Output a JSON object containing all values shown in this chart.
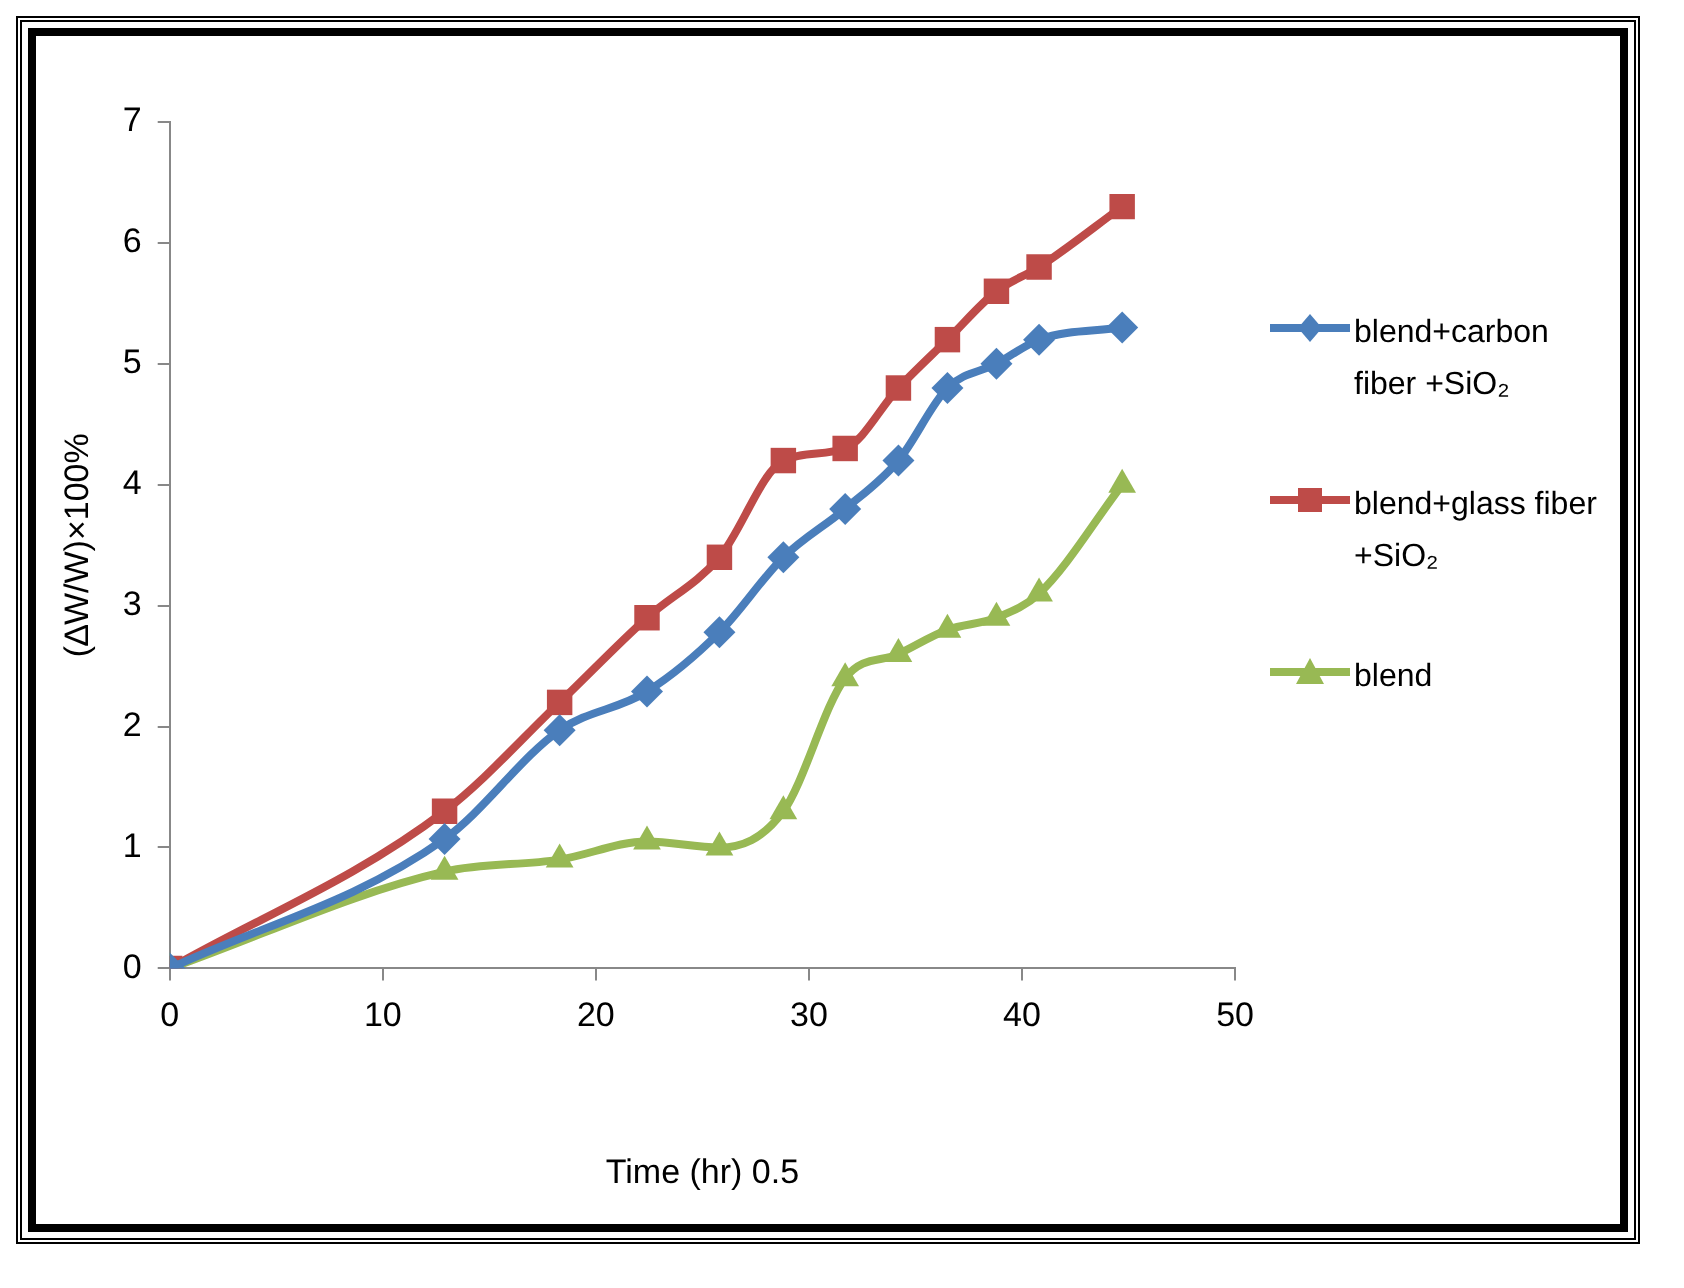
{
  "chart_data": {
    "type": "line",
    "xlabel": "Time (hr) 0.5",
    "ylabel": "(∆W/W)×100%",
    "x": [
      0,
      12.9,
      18.3,
      22.4,
      25.8,
      28.8,
      31.7,
      34.2,
      36.5,
      38.8,
      40.8,
      44.7
    ],
    "series": [
      {
        "name": "blend+carbon fiber +SiO₂",
        "color": "#4a7ebb",
        "marker": "diamond",
        "values": [
          0,
          1.07,
          1.97,
          2.29,
          2.78,
          3.4,
          3.8,
          4.2,
          4.8,
          5.0,
          5.2,
          5.3
        ]
      },
      {
        "name": "blend+glass fiber +SiO₂",
        "color": "#be4b48",
        "marker": "square",
        "values": [
          0,
          1.3,
          2.2,
          2.9,
          3.4,
          4.2,
          4.3,
          4.8,
          5.2,
          5.6,
          5.8,
          6.3
        ]
      },
      {
        "name": "blend",
        "color": "#98b954",
        "marker": "triangle",
        "values": [
          0,
          0.8,
          0.9,
          1.05,
          1.0,
          1.3,
          2.4,
          2.6,
          2.8,
          2.9,
          3.1,
          4.0
        ]
      }
    ],
    "xlim": [
      0,
      50
    ],
    "xticks": [
      0,
      10,
      20,
      30,
      40,
      50
    ],
    "ylim": [
      0,
      7
    ],
    "yticks": [
      0,
      1,
      2,
      3,
      4,
      5,
      6,
      7
    ],
    "grid": false,
    "legend": "right",
    "line_style": "solid"
  }
}
